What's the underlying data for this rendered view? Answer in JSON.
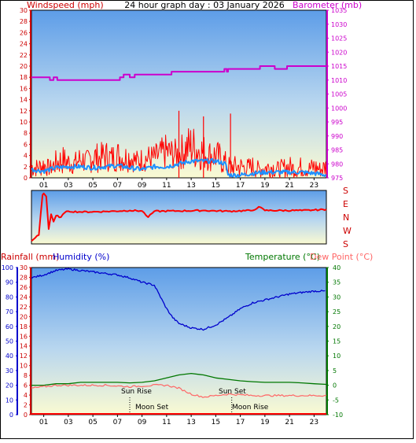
{
  "header": {
    "title": "24 hour graph day : 03 January 2026",
    "left_label": "Windspeed (mph)",
    "right_label": "Barometer (mb)"
  },
  "panel3_labels": {
    "rainfall": "Rainfall (mm)",
    "humidity": "Humidity (%)",
    "temperature": "Temperature (°C)",
    "dewpoint": "Dew Point (°C)"
  },
  "annotations": {
    "sun_rise": "Sun Rise",
    "sun_set": "Sun Set",
    "moon_set": "Moon Set",
    "moon_rise": "Moon Rise"
  },
  "colors": {
    "wind": "#ff0000",
    "gust_fill": "#1e90ff",
    "barometer": "#cc00cc",
    "direction": "#ff0000",
    "humidity": "#0000cc",
    "temperature": "#007700",
    "dewpoint": "#ff6666",
    "rain": "#ff0000",
    "sky_top": "#6aa8f0",
    "sky_bottom": "#fafad2"
  },
  "chart_data": [
    {
      "type": "line",
      "name": "wind_and_barometer",
      "x_ticks": [
        "01",
        "03",
        "05",
        "07",
        "09",
        "11",
        "13",
        "15",
        "17",
        "19",
        "21",
        "23"
      ],
      "xlim": [
        0,
        24
      ],
      "y_left": {
        "ticks": [
          "0",
          "2",
          "4",
          "6",
          "8",
          "10",
          "12",
          "14",
          "16",
          "18",
          "20",
          "22",
          "24",
          "26",
          "28",
          "30"
        ],
        "ylim": [
          0,
          30
        ]
      },
      "y_right": {
        "ticks": [
          "975",
          "980",
          "985",
          "990",
          "995",
          "1000",
          "1005",
          "1010",
          "1015",
          "1020",
          "1025",
          "1030",
          "1035"
        ],
        "ylim": [
          975,
          1035
        ]
      },
      "wind_high": [
        [
          0,
          4
        ],
        [
          0.5,
          3.5
        ],
        [
          1,
          4.5
        ],
        [
          1.5,
          3
        ],
        [
          2,
          5
        ],
        [
          2.5,
          6
        ],
        [
          3,
          5
        ],
        [
          3.5,
          4.5
        ],
        [
          4,
          6
        ],
        [
          4.5,
          5
        ],
        [
          5,
          7
        ],
        [
          5.5,
          6
        ],
        [
          6,
          7
        ],
        [
          6.5,
          6
        ],
        [
          7,
          7
        ],
        [
          7.5,
          6
        ],
        [
          8,
          6.5
        ],
        [
          8.5,
          5
        ],
        [
          9,
          5.5
        ],
        [
          9.5,
          6
        ],
        [
          10,
          6
        ],
        [
          10.5,
          7
        ],
        [
          11,
          8
        ],
        [
          11.5,
          7
        ],
        [
          12,
          7
        ],
        [
          12.5,
          9
        ],
        [
          13,
          10
        ],
        [
          13.5,
          9
        ],
        [
          14,
          8
        ],
        [
          14.5,
          7
        ],
        [
          15,
          7
        ],
        [
          15.5,
          6
        ],
        [
          16,
          4
        ],
        [
          16.5,
          4
        ],
        [
          17,
          4
        ],
        [
          17.5,
          3.5
        ],
        [
          18,
          4
        ],
        [
          18.5,
          3
        ],
        [
          19,
          3.5
        ],
        [
          19.5,
          4
        ],
        [
          20,
          3
        ],
        [
          20.5,
          3.5
        ],
        [
          21,
          4
        ],
        [
          21.5,
          3
        ],
        [
          22,
          4
        ],
        [
          22.5,
          3
        ],
        [
          23,
          4
        ],
        [
          23.5,
          3
        ],
        [
          24,
          4
        ]
      ],
      "wind_low": [
        [
          0,
          0
        ],
        [
          3,
          0.5
        ],
        [
          6,
          1
        ],
        [
          9,
          1
        ],
        [
          12,
          1.5
        ],
        [
          15,
          1
        ],
        [
          16,
          0
        ],
        [
          24,
          0
        ]
      ],
      "wind_peak": [
        [
          12,
          12
        ],
        [
          14,
          11
        ],
        [
          16.2,
          11.5
        ]
      ],
      "gust_band": [
        [
          0,
          1.5
        ],
        [
          1,
          1.2
        ],
        [
          2,
          1.8
        ],
        [
          3,
          2
        ],
        [
          4,
          2
        ],
        [
          5,
          1.8
        ],
        [
          6,
          2
        ],
        [
          7,
          2.2
        ],
        [
          8,
          1.8
        ],
        [
          9,
          1.5
        ],
        [
          10,
          2
        ],
        [
          11,
          2
        ],
        [
          12,
          2.5
        ],
        [
          13,
          3
        ],
        [
          14,
          3
        ],
        [
          15,
          3
        ],
        [
          15.8,
          2.5
        ],
        [
          16,
          0.5
        ],
        [
          17,
          0.5
        ],
        [
          18,
          0.8
        ],
        [
          19,
          1
        ],
        [
          20,
          1
        ],
        [
          21,
          1
        ],
        [
          22,
          1
        ],
        [
          23,
          0.8
        ],
        [
          24,
          0.5
        ]
      ],
      "barometer": [
        [
          0,
          1011
        ],
        [
          1.5,
          1010
        ],
        [
          1.8,
          1011
        ],
        [
          2.1,
          1010
        ],
        [
          7,
          1010
        ],
        [
          7.2,
          1011
        ],
        [
          7.5,
          1012
        ],
        [
          8,
          1011
        ],
        [
          8.4,
          1012
        ],
        [
          11.2,
          1012
        ],
        [
          11.4,
          1013
        ],
        [
          15.5,
          1013
        ],
        [
          15.7,
          1014
        ],
        [
          15.9,
          1013
        ],
        [
          16,
          1014
        ],
        [
          18.3,
          1014
        ],
        [
          18.6,
          1015
        ],
        [
          19.5,
          1015
        ],
        [
          19.8,
          1014
        ],
        [
          20.5,
          1014
        ],
        [
          20.8,
          1015
        ],
        [
          24,
          1015
        ]
      ]
    },
    {
      "type": "line",
      "name": "wind_direction",
      "y_labels": [
        "S",
        "E",
        "N",
        "W",
        "S"
      ],
      "ylim": [
        0,
        360
      ],
      "direction": [
        [
          0,
          20
        ],
        [
          0.3,
          40
        ],
        [
          0.6,
          60
        ],
        [
          0.9,
          330
        ],
        [
          1,
          340
        ],
        [
          1.2,
          320
        ],
        [
          1.4,
          100
        ],
        [
          1.6,
          200
        ],
        [
          1.8,
          150
        ],
        [
          2,
          190
        ],
        [
          2.4,
          180
        ],
        [
          2.7,
          210
        ],
        [
          3,
          220
        ],
        [
          4,
          215
        ],
        [
          6,
          218
        ],
        [
          8,
          225
        ],
        [
          9,
          222
        ],
        [
          9.5,
          180
        ],
        [
          10,
          220
        ],
        [
          12,
          222
        ],
        [
          14,
          225
        ],
        [
          16,
          220
        ],
        [
          18,
          225
        ],
        [
          18.5,
          250
        ],
        [
          19,
          225
        ],
        [
          22,
          225
        ],
        [
          23,
          228
        ],
        [
          24,
          232
        ]
      ]
    },
    {
      "type": "line",
      "name": "temperature_humidity_rain",
      "y_left_humidity": {
        "ticks": [
          "0",
          "10",
          "20",
          "30",
          "40",
          "50",
          "60",
          "70",
          "80",
          "90",
          "100"
        ],
        "ylim": [
          0,
          100
        ]
      },
      "y_left_rain": {
        "ticks": [
          "0",
          "2",
          "4",
          "6",
          "8",
          "10",
          "12",
          "14",
          "16",
          "18",
          "20",
          "22",
          "24",
          "26",
          "28",
          "30"
        ],
        "ylim": [
          0,
          30
        ]
      },
      "y_right_temp": {
        "ticks": [
          "-10",
          "-5",
          "0",
          "5",
          "10",
          "15",
          "20",
          "25",
          "30",
          "35",
          "40"
        ],
        "ylim": [
          -10,
          40
        ]
      },
      "humidity": [
        [
          0,
          93
        ],
        [
          1,
          95
        ],
        [
          2,
          98
        ],
        [
          3,
          99
        ],
        [
          4,
          98
        ],
        [
          5,
          97
        ],
        [
          6,
          96
        ],
        [
          7,
          95
        ],
        [
          8,
          93
        ],
        [
          9,
          90
        ],
        [
          10,
          88
        ],
        [
          10.5,
          80
        ],
        [
          11,
          72
        ],
        [
          11.5,
          66
        ],
        [
          12,
          62
        ],
        [
          13,
          59
        ],
        [
          14,
          58
        ],
        [
          15,
          61
        ],
        [
          16,
          66
        ],
        [
          17,
          72
        ],
        [
          18,
          76
        ],
        [
          19,
          78
        ],
        [
          20,
          80
        ],
        [
          21,
          82
        ],
        [
          22,
          83
        ],
        [
          23,
          84
        ],
        [
          24,
          84
        ]
      ],
      "temperature": [
        [
          0,
          0
        ],
        [
          1,
          0
        ],
        [
          2,
          0.5
        ],
        [
          3,
          0.5
        ],
        [
          4,
          1
        ],
        [
          5,
          1
        ],
        [
          6,
          1
        ],
        [
          7,
          1
        ],
        [
          8,
          0.8
        ],
        [
          9,
          1
        ],
        [
          10,
          1.5
        ],
        [
          11,
          2.5
        ],
        [
          12,
          3.5
        ],
        [
          13,
          4
        ],
        [
          14,
          3.5
        ],
        [
          15,
          2.5
        ],
        [
          16,
          2
        ],
        [
          17,
          1.5
        ],
        [
          18,
          1.2
        ],
        [
          19,
          1
        ],
        [
          20,
          1
        ],
        [
          21,
          1
        ],
        [
          22,
          0.8
        ],
        [
          23,
          0.5
        ],
        [
          24,
          0.3
        ]
      ],
      "dewpoint": [
        [
          0,
          -1
        ],
        [
          2,
          0
        ],
        [
          4,
          0
        ],
        [
          6,
          0
        ],
        [
          8,
          -0.5
        ],
        [
          10,
          0
        ],
        [
          11,
          0
        ],
        [
          12,
          -1
        ],
        [
          13,
          -3
        ],
        [
          14,
          -4
        ],
        [
          16,
          -3
        ],
        [
          18,
          -3.5
        ],
        [
          20,
          -3.5
        ],
        [
          22,
          -3.5
        ],
        [
          24,
          -3.5
        ]
      ],
      "rain": [
        [
          0,
          0
        ],
        [
          24,
          0
        ]
      ],
      "event_times": {
        "sun_rise": 8.0,
        "sun_set": 16.3,
        "moon_set": 8.0,
        "moon_rise": 16.3
      }
    }
  ]
}
